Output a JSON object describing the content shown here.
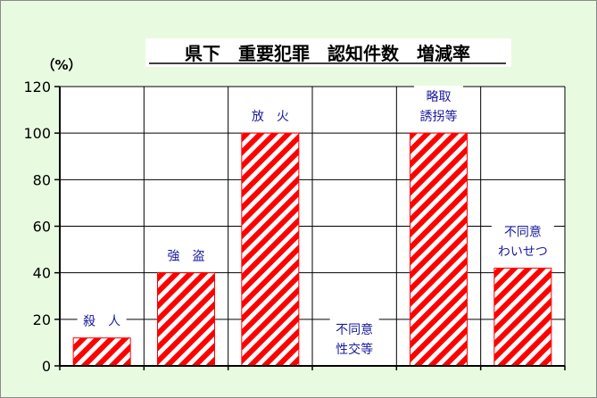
{
  "chart_data": {
    "type": "bar",
    "title": "県下　重要犯罪　認知件数　増減率",
    "ylabel": "（%）",
    "xlabel": "",
    "categories": [
      [
        "殺　人"
      ],
      [
        "強　盗"
      ],
      [
        "放　火"
      ],
      [
        "不同意",
        "性交等"
      ],
      [
        "略取",
        "誘拐等"
      ],
      [
        "不同意",
        "わいせつ"
      ]
    ],
    "values": [
      12,
      40,
      100,
      0,
      100,
      42
    ],
    "ylim": [
      0,
      120
    ],
    "yticks": [
      0,
      20,
      40,
      60,
      80,
      100,
      120
    ],
    "grid": true,
    "legend": "none",
    "colors": {
      "bar_stripe": "#ff0000",
      "bar_base": "#ffffff",
      "bar_outline": "#ff0000",
      "label_text": "#1a1aa0",
      "background": "#e8fbe0",
      "plot_background": "#ffffff",
      "grid": "#000000"
    }
  }
}
